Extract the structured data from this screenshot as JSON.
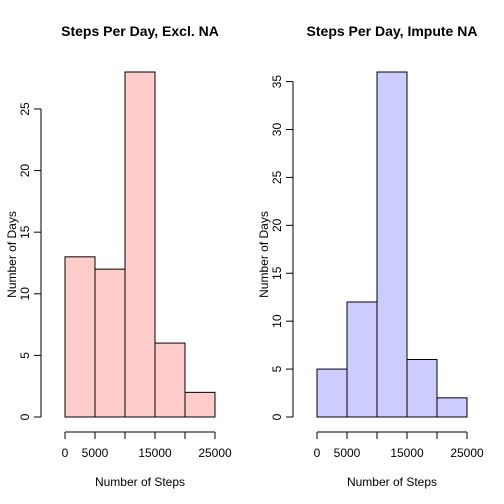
{
  "chart_data": [
    {
      "type": "bar",
      "title": "Steps Per Day, Excl. NA",
      "xlabel": "Number of Steps",
      "ylabel": "Number of Days",
      "bins": [
        [
          0,
          5000
        ],
        [
          5000,
          10000
        ],
        [
          10000,
          15000
        ],
        [
          15000,
          20000
        ],
        [
          20000,
          25000
        ]
      ],
      "values": [
        13,
        12,
        28,
        6,
        2
      ],
      "xlim": [
        0,
        25000
      ],
      "ylim": [
        0,
        28
      ],
      "xticks": [
        0,
        5000,
        10000,
        15000,
        20000,
        25000
      ],
      "xtick_labels": [
        "0",
        "5000",
        "",
        "15000",
        "",
        "25000"
      ],
      "yticks": [
        0,
        5,
        10,
        15,
        20,
        25
      ],
      "ytick_labels": [
        "0",
        "5",
        "10",
        "15",
        "20",
        "25"
      ],
      "color": "#ffcccc",
      "grid": false
    },
    {
      "type": "bar",
      "title": "Steps Per Day, Impute NA",
      "xlabel": "Number of Steps",
      "ylabel": "Number of Days",
      "bins": [
        [
          0,
          5000
        ],
        [
          5000,
          10000
        ],
        [
          10000,
          15000
        ],
        [
          15000,
          20000
        ],
        [
          20000,
          25000
        ]
      ],
      "values": [
        5,
        12,
        36,
        6,
        2
      ],
      "xlim": [
        0,
        25000
      ],
      "ylim": [
        0,
        36
      ],
      "xticks": [
        0,
        5000,
        10000,
        15000,
        20000,
        25000
      ],
      "xtick_labels": [
        "0",
        "5000",
        "",
        "15000",
        "",
        "25000"
      ],
      "yticks": [
        0,
        5,
        10,
        15,
        20,
        25,
        30,
        35
      ],
      "ytick_labels": [
        "0",
        "5",
        "10",
        "15",
        "20",
        "25",
        "30",
        "35"
      ],
      "color": "#ccccff",
      "grid": false
    }
  ]
}
